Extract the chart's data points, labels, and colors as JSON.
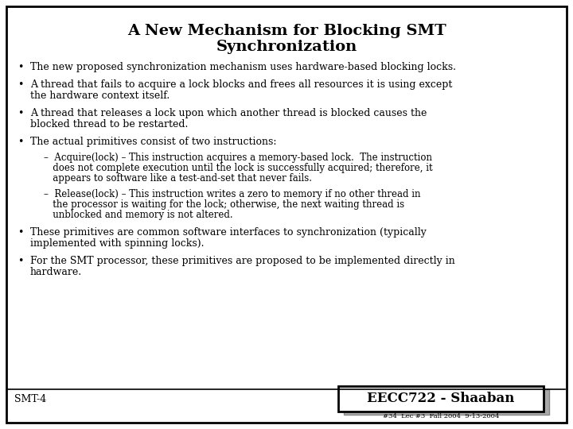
{
  "title_line1": "A New Mechanism for Blocking SMT",
  "title_line2": "Synchronization",
  "bg_color": "#ffffff",
  "border_color": "#000000",
  "text_color": "#000000",
  "title_fontsize": 14,
  "body_fontsize": 9.0,
  "sub_fontsize": 8.5,
  "footer_label": "SMT-4",
  "footer_right": "#34  Lec #3  Fall 2004  9-13-2004",
  "eecc_text": "EECC722 - Shaaban",
  "bullet1": "The new proposed synchronization mechanism uses hardware-based blocking locks.",
  "bullet2a": "A thread that fails to acquire a lock blocks and frees all resources it is using except",
  "bullet2b": "the hardware context itself.",
  "bullet3a": "A thread that releases a lock upon which another thread is blocked causes the",
  "bullet3b": "blocked thread to be restarted.",
  "bullet4": "The actual primitives consist of two instructions:",
  "sub1a": "–  Acquire(lock) – This instruction acquires a memory-based lock.  The instruction",
  "sub1b": "   does not complete execution until the lock is successfully acquired; therefore, it",
  "sub1c": "   appears to software like a test-and-set that never fails.",
  "sub2a": "–  Release(lock) – This instruction writes a zero to memory if no other thread in",
  "sub2b": "   the processor is waiting for the lock; otherwise, the next waiting thread is",
  "sub2c": "   unblocked and memory is not altered.",
  "bullet5a": "These primitives are common software interfaces to synchronization (typically",
  "bullet5b": "implemented with spinning locks).",
  "bullet6a": "For the SMT processor, these primitives are proposed to be implemented directly in",
  "bullet6b": "hardware."
}
